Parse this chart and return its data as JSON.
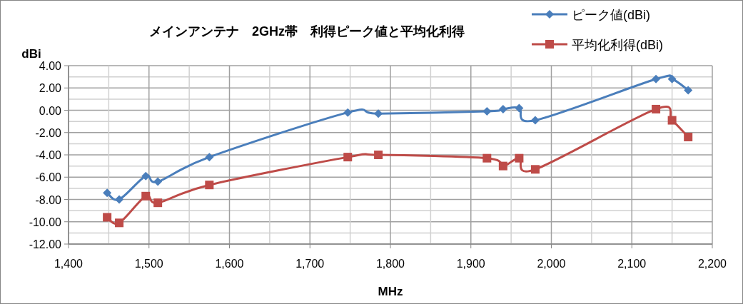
{
  "chart_data": {
    "type": "line",
    "title": "メインアンテナ　2GHz帯　利得ピーク値と平均化利得",
    "xlabel": "MHz",
    "ylabel": "dBi",
    "xlim": [
      1400,
      2200
    ],
    "xticks": [
      {
        "value": 1400,
        "label": "1,400"
      },
      {
        "value": 1500,
        "label": "1,500"
      },
      {
        "value": 1600,
        "label": "1,600"
      },
      {
        "value": 1700,
        "label": "1,700"
      },
      {
        "value": 1800,
        "label": "1,800"
      },
      {
        "value": 1900,
        "label": "1,900"
      },
      {
        "value": 2000,
        "label": "2,000"
      },
      {
        "value": 2100,
        "label": "2,100"
      },
      {
        "value": 2200,
        "label": "2,200"
      }
    ],
    "ylim": [
      -12,
      4
    ],
    "yticks": [
      {
        "value": 4,
        "label": "4.00"
      },
      {
        "value": 2,
        "label": "2.00"
      },
      {
        "value": 0,
        "label": "0.00"
      },
      {
        "value": -2,
        "label": "-2.00"
      },
      {
        "value": -4,
        "label": "-4.00"
      },
      {
        "value": -6,
        "label": "-6.00"
      },
      {
        "value": -8,
        "label": "-8.00"
      },
      {
        "value": -10,
        "label": "-10.00"
      },
      {
        "value": -12,
        "label": "-12.00"
      }
    ],
    "x": [
      1448,
      1463,
      1496,
      1511,
      1575,
      1747,
      1785,
      1920,
      1940,
      1960,
      1980,
      2130,
      2150,
      2170
    ],
    "grid": true,
    "legend": "top right",
    "series": [
      {
        "name": "ピーク値(dBi)",
        "color": "#4a7ebb",
        "marker": "diamond",
        "values": [
          -7.4,
          -8.0,
          -5.9,
          -6.4,
          -4.2,
          -0.2,
          -0.3,
          -0.1,
          0.1,
          0.2,
          -0.9,
          2.8,
          2.8,
          1.8
        ]
      },
      {
        "name": "平均化利得(dBi)",
        "color": "#be4b48",
        "marker": "square",
        "values": [
          -9.6,
          -10.1,
          -7.7,
          -8.3,
          -6.7,
          -4.2,
          -4.0,
          -4.3,
          -5.0,
          -4.3,
          -5.3,
          0.1,
          -0.9,
          -2.4
        ]
      }
    ]
  }
}
